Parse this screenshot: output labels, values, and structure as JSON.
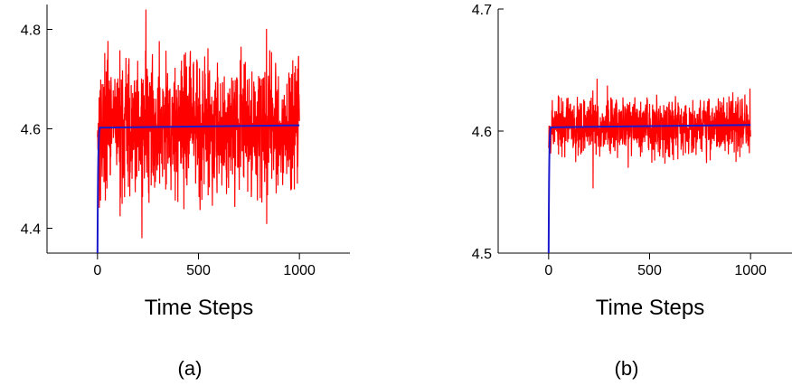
{
  "chart_data": [
    {
      "type": "line",
      "panel_label": "(a)",
      "xlabel": "Time Steps",
      "ylabel": "",
      "xlim": [
        -250,
        1250
      ],
      "ylim": [
        4.35,
        4.85
      ],
      "xticks": [
        0,
        500,
        1000
      ],
      "xtick_labels": [
        "0",
        "500",
        "1000"
      ],
      "yticks": [
        4.4,
        4.6,
        4.8
      ],
      "ytick_labels": [
        "4.4",
        "4.6",
        "4.8"
      ],
      "grid": false,
      "series": [
        {
          "color": "#ff0000",
          "x_range": [
            0,
            1000
          ],
          "samples": 1000,
          "mean": 4.605,
          "min": 4.38,
          "max": 4.84,
          "spread": 0.07,
          "seed": 17
        },
        {
          "color": "#1a1acc",
          "x_range": [
            0,
            1000
          ],
          "start": 4.35,
          "plateau": 4.607,
          "rise_steps": 12
        }
      ]
    },
    {
      "type": "line",
      "panel_label": "(b)",
      "xlabel": "Time Steps",
      "ylabel": "",
      "xlim": [
        -250,
        1250
      ],
      "ylim": [
        4.5,
        4.7
      ],
      "xticks": [
        0,
        500,
        1000
      ],
      "xtick_labels": [
        "0",
        "500",
        "1000"
      ],
      "yticks": [
        4.5,
        4.6,
        4.7
      ],
      "ytick_labels": [
        "4.5",
        "4.6",
        "4.7"
      ],
      "grid": false,
      "series": [
        {
          "color": "#ff0000",
          "x_range": [
            0,
            1000
          ],
          "samples": 1000,
          "mean": 4.605,
          "min": 4.553,
          "max": 4.643,
          "spread": 0.012,
          "seed": 53
        },
        {
          "color": "#1a1acc",
          "x_range": [
            0,
            1000
          ],
          "start": 4.5,
          "plateau": 4.605,
          "rise_steps": 10
        }
      ]
    }
  ]
}
